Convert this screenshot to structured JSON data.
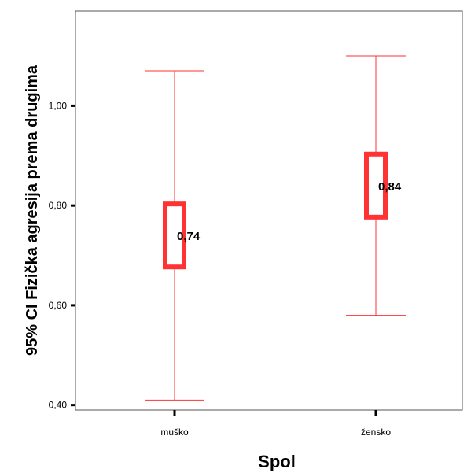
{
  "chart_data": {
    "type": "errorbar",
    "title": "",
    "xlabel": "Spol",
    "ylabel": "95% CI Fizička agresija prema drugima",
    "categories": [
      "muško",
      "žensko"
    ],
    "mean": [
      0.74,
      0.84
    ],
    "mean_labels": [
      "0,74",
      "0,84"
    ],
    "ci_lower": [
      0.41,
      0.58
    ],
    "ci_upper": [
      1.07,
      1.1
    ],
    "ylim": [
      0.39,
      1.19
    ],
    "yticks": [
      0.4,
      0.6,
      0.8,
      1.0
    ],
    "ytick_labels": [
      "0,40",
      "0,60",
      "0,80",
      "1,00"
    ],
    "grid": false,
    "legend": "none",
    "colors": {
      "marker": "#ff3333",
      "whisker": "#ff3333",
      "axis": "#000000",
      "frame": "#555555"
    }
  }
}
